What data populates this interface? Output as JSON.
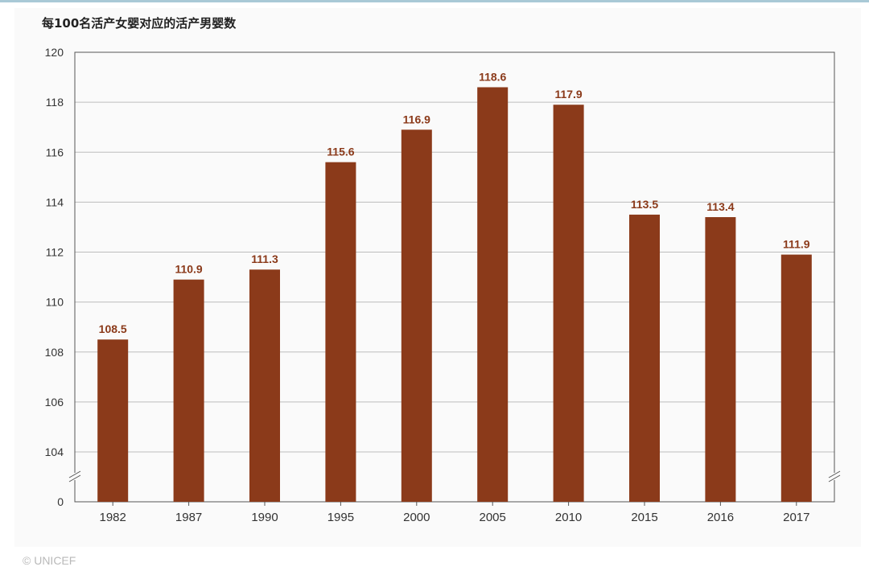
{
  "chart_data": {
    "type": "bar",
    "title": "每100名活产女婴对应的活产男婴数",
    "categories": [
      "1982",
      "1987",
      "1990",
      "1995",
      "2000",
      "2005",
      "2010",
      "2015",
      "2016",
      "2017"
    ],
    "values": [
      108.5,
      110.9,
      111.3,
      115.6,
      116.9,
      118.6,
      117.9,
      113.5,
      113.4,
      111.9
    ],
    "value_labels": [
      "108.5",
      "110.9",
      "111.3",
      "115.6",
      "116.9",
      "118.6",
      "117.9",
      "113.5",
      "113.4",
      "111.9"
    ],
    "yticks": [
      "0",
      "104",
      "106",
      "108",
      "110",
      "112",
      "114",
      "116",
      "118",
      "120"
    ],
    "ylim": [
      102,
      120
    ],
    "axis_break": true,
    "grid": true,
    "xlabel": "",
    "ylabel": "",
    "bar_color": "#8b3a1a",
    "label_color": "#8b3a1a"
  },
  "footer": {
    "credit": "© UNICEF"
  }
}
